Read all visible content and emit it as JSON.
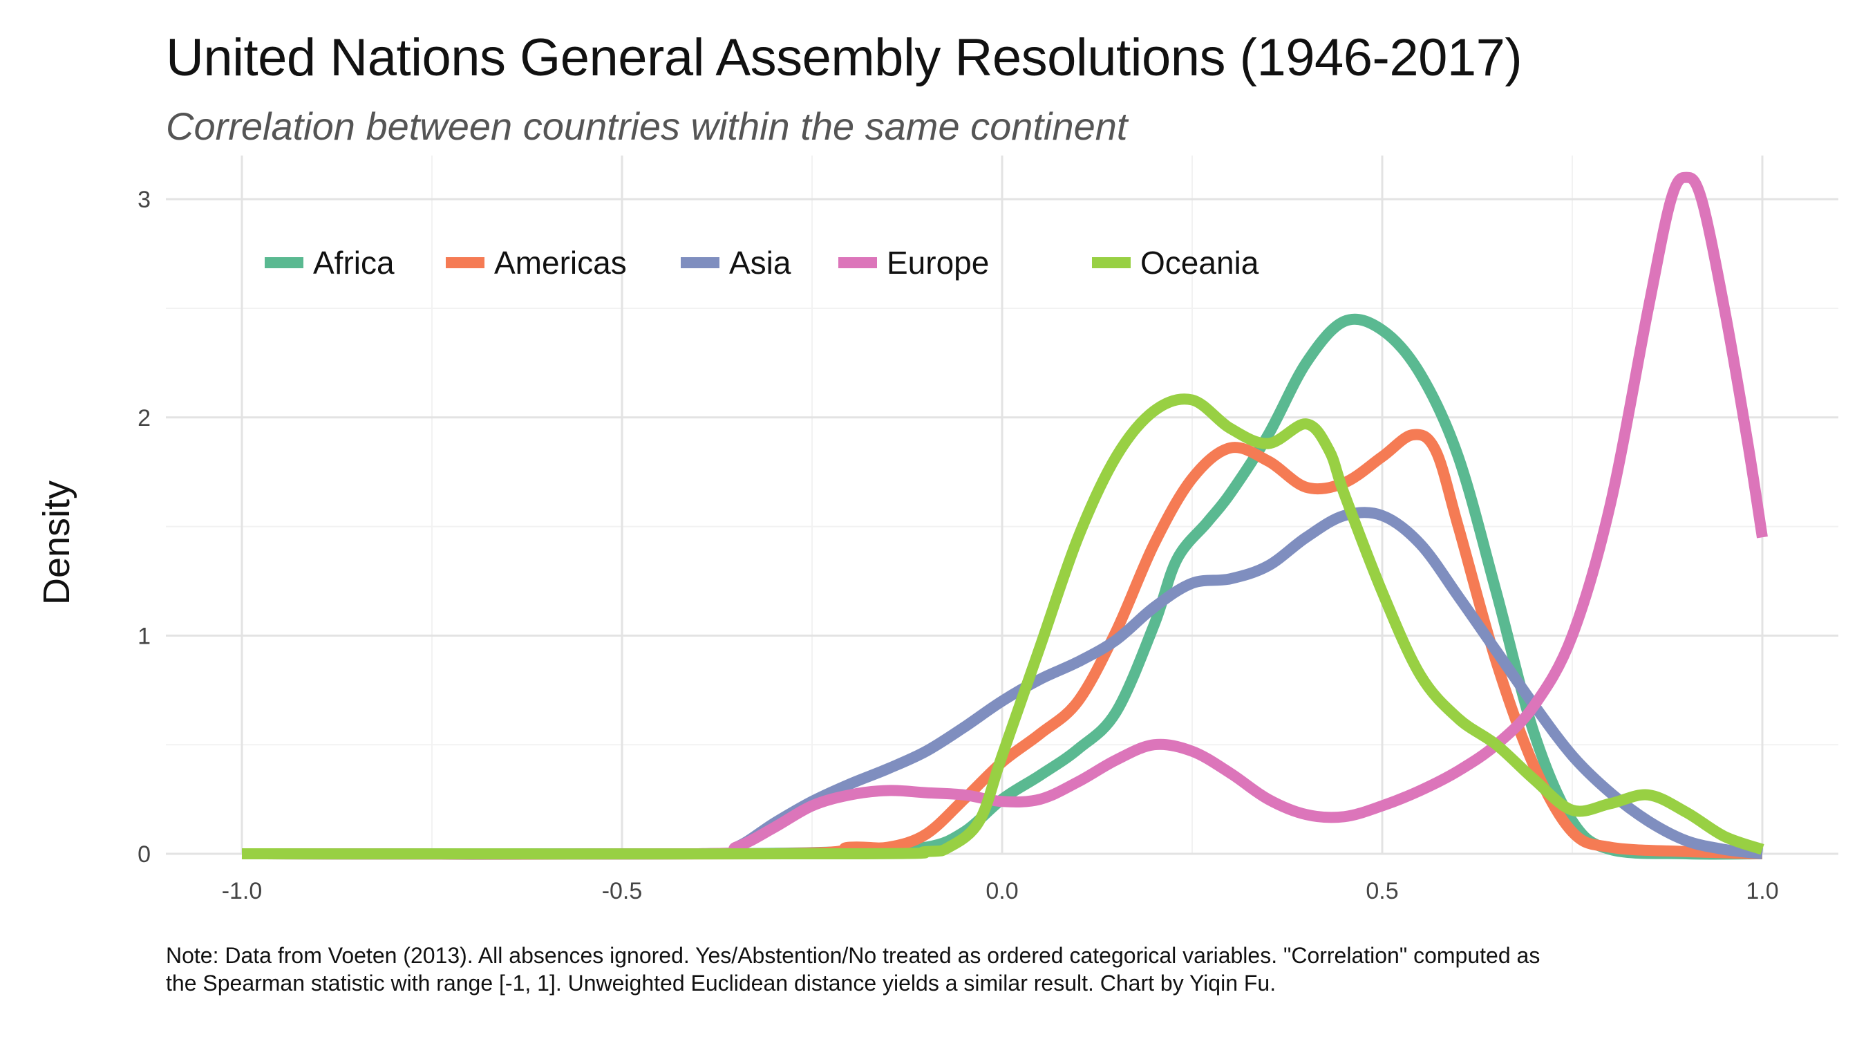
{
  "chart_data": {
    "type": "line",
    "title": "United Nations General Assembly Resolutions (1946-2017)",
    "subtitle": "Correlation between countries within the same continent",
    "xlabel": "",
    "ylabel": "Density",
    "xlim": [
      -1.1,
      1.1
    ],
    "ylim": [
      0,
      3.2
    ],
    "x_ticks": [
      -1.0,
      -0.5,
      0.0,
      0.5,
      1.0
    ],
    "x_tick_labels": [
      "-1.0",
      "-0.5",
      "0.0",
      "0.5",
      "1.0"
    ],
    "y_ticks": [
      0,
      1,
      2,
      3
    ],
    "y_tick_labels": [
      "0",
      "1",
      "2",
      "3"
    ],
    "grid": true,
    "legend_position": "top-left",
    "caption_lines": [
      "Note: Data from Voeten (2013). All absences ignored. Yes/Abstention/No treated as ordered categorical variables. \"Correlation\" computed as",
      "the Spearman statistic with range [-1, 1]. Unweighted Euclidean distance yields a similar result. Chart by Yiqin Fu."
    ],
    "series": [
      {
        "name": "Africa",
        "color": "#5ab991",
        "points": [
          [
            -1.0,
            0
          ],
          [
            -0.4,
            0
          ],
          [
            -0.2,
            0.01
          ],
          [
            -0.1,
            0.03
          ],
          [
            -0.05,
            0.1
          ],
          [
            0.0,
            0.25
          ],
          [
            0.05,
            0.36
          ],
          [
            0.1,
            0.48
          ],
          [
            0.15,
            0.65
          ],
          [
            0.2,
            1.05
          ],
          [
            0.23,
            1.35
          ],
          [
            0.27,
            1.52
          ],
          [
            0.3,
            1.65
          ],
          [
            0.35,
            1.92
          ],
          [
            0.4,
            2.25
          ],
          [
            0.45,
            2.44
          ],
          [
            0.5,
            2.4
          ],
          [
            0.55,
            2.2
          ],
          [
            0.6,
            1.82
          ],
          [
            0.65,
            1.2
          ],
          [
            0.7,
            0.55
          ],
          [
            0.75,
            0.15
          ],
          [
            0.8,
            0.02
          ],
          [
            0.9,
            0
          ],
          [
            1.0,
            0
          ]
        ]
      },
      {
        "name": "Americas",
        "color": "#f57b54",
        "points": [
          [
            -1.0,
            0
          ],
          [
            -0.3,
            0
          ],
          [
            -0.2,
            0.03
          ],
          [
            -0.15,
            0.03
          ],
          [
            -0.1,
            0.09
          ],
          [
            -0.05,
            0.25
          ],
          [
            0.0,
            0.42
          ],
          [
            0.05,
            0.55
          ],
          [
            0.1,
            0.7
          ],
          [
            0.15,
            1.02
          ],
          [
            0.2,
            1.42
          ],
          [
            0.25,
            1.72
          ],
          [
            0.3,
            1.86
          ],
          [
            0.35,
            1.8
          ],
          [
            0.4,
            1.68
          ],
          [
            0.45,
            1.7
          ],
          [
            0.5,
            1.82
          ],
          [
            0.54,
            1.92
          ],
          [
            0.57,
            1.85
          ],
          [
            0.6,
            1.5
          ],
          [
            0.65,
            0.88
          ],
          [
            0.7,
            0.4
          ],
          [
            0.75,
            0.1
          ],
          [
            0.8,
            0.03
          ],
          [
            0.9,
            0.01
          ],
          [
            1.0,
            0
          ]
        ]
      },
      {
        "name": "Asia",
        "color": "#7f8ebf",
        "points": [
          [
            -1.0,
            0
          ],
          [
            -0.4,
            0
          ],
          [
            -0.35,
            0.03
          ],
          [
            -0.3,
            0.14
          ],
          [
            -0.25,
            0.24
          ],
          [
            -0.2,
            0.32
          ],
          [
            -0.15,
            0.39
          ],
          [
            -0.1,
            0.47
          ],
          [
            -0.05,
            0.58
          ],
          [
            0.0,
            0.7
          ],
          [
            0.05,
            0.8
          ],
          [
            0.1,
            0.88
          ],
          [
            0.15,
            0.98
          ],
          [
            0.2,
            1.13
          ],
          [
            0.25,
            1.24
          ],
          [
            0.3,
            1.26
          ],
          [
            0.35,
            1.32
          ],
          [
            0.4,
            1.45
          ],
          [
            0.45,
            1.55
          ],
          [
            0.5,
            1.55
          ],
          [
            0.55,
            1.42
          ],
          [
            0.6,
            1.18
          ],
          [
            0.65,
            0.93
          ],
          [
            0.7,
            0.68
          ],
          [
            0.75,
            0.45
          ],
          [
            0.8,
            0.28
          ],
          [
            0.85,
            0.15
          ],
          [
            0.9,
            0.06
          ],
          [
            0.95,
            0.02
          ],
          [
            1.0,
            0
          ]
        ]
      },
      {
        "name": "Europe",
        "color": "#dc75ba",
        "points": [
          [
            -1.0,
            0
          ],
          [
            -0.4,
            0
          ],
          [
            -0.35,
            0.03
          ],
          [
            -0.3,
            0.12
          ],
          [
            -0.25,
            0.22
          ],
          [
            -0.2,
            0.27
          ],
          [
            -0.15,
            0.29
          ],
          [
            -0.1,
            0.28
          ],
          [
            -0.05,
            0.27
          ],
          [
            0.0,
            0.24
          ],
          [
            0.05,
            0.25
          ],
          [
            0.1,
            0.33
          ],
          [
            0.15,
            0.43
          ],
          [
            0.2,
            0.5
          ],
          [
            0.25,
            0.47
          ],
          [
            0.3,
            0.37
          ],
          [
            0.35,
            0.25
          ],
          [
            0.4,
            0.18
          ],
          [
            0.45,
            0.17
          ],
          [
            0.5,
            0.22
          ],
          [
            0.55,
            0.29
          ],
          [
            0.6,
            0.38
          ],
          [
            0.65,
            0.5
          ],
          [
            0.7,
            0.68
          ],
          [
            0.75,
            1.0
          ],
          [
            0.8,
            1.6
          ],
          [
            0.85,
            2.5
          ],
          [
            0.88,
            3.0
          ],
          [
            0.9,
            3.1
          ],
          [
            0.92,
            3.0
          ],
          [
            0.95,
            2.5
          ],
          [
            0.98,
            1.9
          ],
          [
            1.0,
            1.45
          ]
        ]
      },
      {
        "name": "Oceania",
        "color": "#98d043",
        "points": [
          [
            -1.0,
            0
          ],
          [
            -0.2,
            0
          ],
          [
            -0.1,
            0.01
          ],
          [
            -0.07,
            0.03
          ],
          [
            -0.03,
            0.15
          ],
          [
            0.0,
            0.45
          ],
          [
            0.05,
            0.95
          ],
          [
            0.1,
            1.45
          ],
          [
            0.15,
            1.82
          ],
          [
            0.2,
            2.03
          ],
          [
            0.25,
            2.08
          ],
          [
            0.3,
            1.95
          ],
          [
            0.35,
            1.88
          ],
          [
            0.4,
            1.97
          ],
          [
            0.43,
            1.85
          ],
          [
            0.45,
            1.65
          ],
          [
            0.5,
            1.2
          ],
          [
            0.55,
            0.82
          ],
          [
            0.6,
            0.62
          ],
          [
            0.65,
            0.5
          ],
          [
            0.7,
            0.34
          ],
          [
            0.75,
            0.2
          ],
          [
            0.8,
            0.23
          ],
          [
            0.85,
            0.27
          ],
          [
            0.9,
            0.19
          ],
          [
            0.95,
            0.08
          ],
          [
            1.0,
            0.02
          ]
        ]
      }
    ]
  }
}
